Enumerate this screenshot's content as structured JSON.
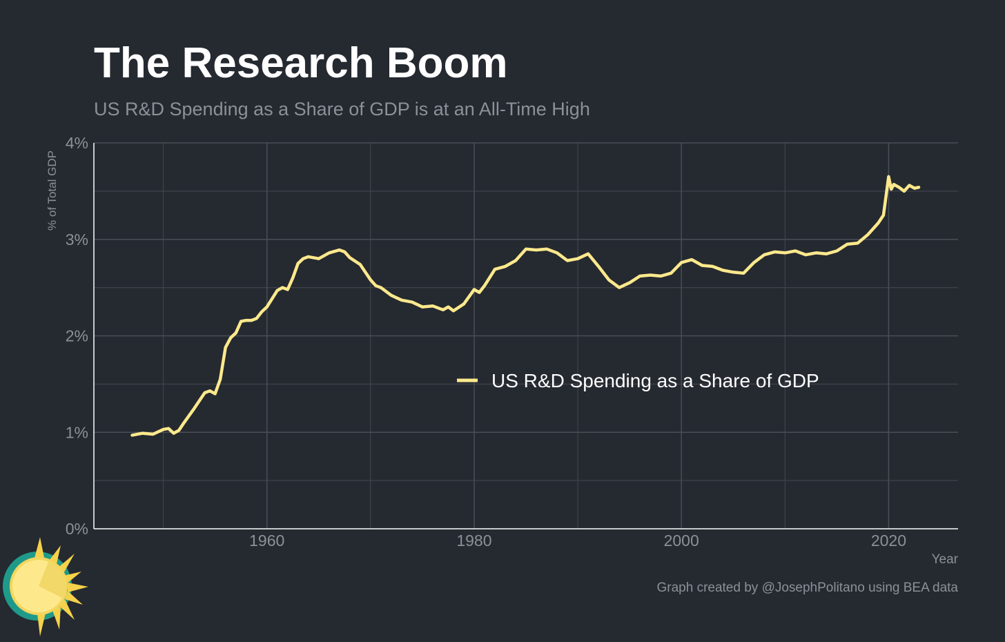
{
  "chart_data": {
    "type": "line",
    "title": "The Research Boom",
    "subtitle": "US R&D Spending as a Share of GDP is at an All-Time High",
    "xlabel": "Year",
    "ylabel": "% of Total GDP",
    "caption": "Graph created by @JosephPolitano using BEA data",
    "xlim": [
      1943.3,
      2026.7
    ],
    "ylim": [
      0,
      4
    ],
    "x_ticks": [
      1960,
      1980,
      2000,
      2020
    ],
    "x_tick_labels": [
      "1960",
      "1980",
      "2000",
      "2020"
    ],
    "y_ticks": [
      0,
      1,
      2,
      3,
      4
    ],
    "y_tick_labels": [
      "0%",
      "1%",
      "2%",
      "3%",
      "4%"
    ],
    "grid": true,
    "legend_position": "center-right",
    "series": [
      {
        "name": "US R&D Spending as a Share of GDP",
        "color": "#fde98c",
        "x": [
          1947,
          1948,
          1949,
          1950,
          1950.5,
          1951,
          1951.5,
          1952,
          1953,
          1954,
          1954.5,
          1955,
          1955.5,
          1956,
          1956.5,
          1957,
          1957.5,
          1958,
          1958.5,
          1959,
          1959.5,
          1960,
          1961,
          1961.5,
          1962,
          1962.5,
          1963,
          1963.5,
          1964,
          1965,
          1966,
          1967,
          1967.5,
          1968,
          1969,
          1970,
          1970.5,
          1971,
          1972,
          1973,
          1974,
          1975,
          1976,
          1977,
          1977.5,
          1978,
          1979,
          1980,
          1980.5,
          1981,
          1982,
          1983,
          1984,
          1985,
          1986,
          1987,
          1988,
          1989,
          1990,
          1991,
          1992,
          1993,
          1994,
          1995,
          1996,
          1997,
          1998,
          1999,
          2000,
          2001,
          2002,
          2003,
          2004,
          2005,
          2006,
          2007,
          2008,
          2009,
          2010,
          2011,
          2012,
          2013,
          2014,
          2015,
          2016,
          2017,
          2018,
          2019,
          2019.5,
          2020,
          2020.25,
          2020.5,
          2021,
          2021.5,
          2022,
          2022.5,
          2022.9
        ],
        "y": [
          0.97,
          0.99,
          0.98,
          1.03,
          1.04,
          0.99,
          1.02,
          1.1,
          1.25,
          1.41,
          1.43,
          1.4,
          1.55,
          1.88,
          1.98,
          2.03,
          2.15,
          2.16,
          2.16,
          2.18,
          2.25,
          2.3,
          2.47,
          2.5,
          2.48,
          2.6,
          2.75,
          2.8,
          2.82,
          2.8,
          2.86,
          2.89,
          2.87,
          2.81,
          2.74,
          2.58,
          2.52,
          2.5,
          2.42,
          2.37,
          2.35,
          2.3,
          2.31,
          2.27,
          2.3,
          2.26,
          2.33,
          2.48,
          2.45,
          2.52,
          2.69,
          2.72,
          2.78,
          2.9,
          2.89,
          2.9,
          2.86,
          2.78,
          2.8,
          2.85,
          2.72,
          2.58,
          2.5,
          2.55,
          2.62,
          2.63,
          2.62,
          2.65,
          2.76,
          2.79,
          2.73,
          2.72,
          2.68,
          2.66,
          2.65,
          2.76,
          2.84,
          2.87,
          2.86,
          2.88,
          2.84,
          2.86,
          2.85,
          2.88,
          2.95,
          2.96,
          3.05,
          3.17,
          3.25,
          3.65,
          3.52,
          3.57,
          3.54,
          3.5,
          3.56,
          3.53,
          3.54
        ]
      }
    ]
  }
}
